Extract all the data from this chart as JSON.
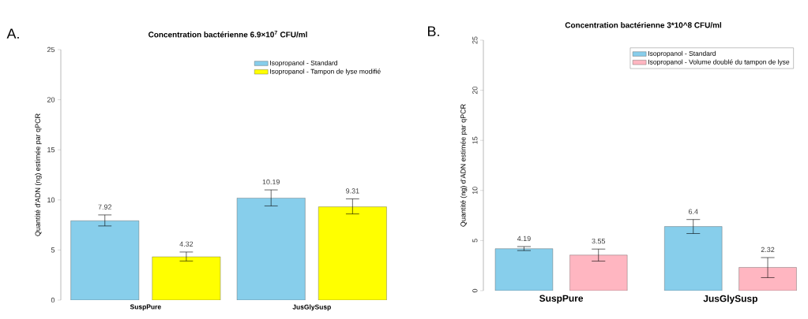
{
  "chart_data": [
    {
      "type": "bar",
      "title": "Concentration bactérienne 6.9×10$^{7}$ CFU/ml",
      "ylabel": "Quantité d'ADN (ng) estimée par qPCR",
      "annotations": [
        "A."
      ],
      "categories": [
        "SuspPure",
        "JusGlySusp"
      ],
      "series": [
        {
          "name": "Isopropanol - Standard",
          "color": "#87ceeb",
          "values": [
            7.92,
            10.19
          ],
          "errors": [
            [
              7.4,
              8.5
            ],
            [
              9.4,
              11.0
            ]
          ]
        },
        {
          "name": "Isopropanol - Tampon de lyse modifié",
          "color": "#ffff00",
          "values": [
            4.32,
            9.31
          ],
          "errors": [
            [
              3.9,
              4.8
            ],
            [
              8.6,
              10.1
            ]
          ]
        }
      ],
      "ylim": [
        0,
        25
      ],
      "yticks": [
        0,
        5,
        10,
        15,
        20,
        25
      ],
      "data_labels": true,
      "legend": "top right"
    },
    {
      "type": "bar",
      "title": "Concentration bactérienne 3*10^8 CFU/ml",
      "ylabel": "Quantité (ng) d'ADN estimée par qPCR",
      "annotations": [
        "B."
      ],
      "categories": [
        "SuspPure",
        "JusGlySusp"
      ],
      "series": [
        {
          "name": "Isopropanol - Standard",
          "color": "#87ceeb",
          "values": [
            4.19,
            6.4
          ],
          "errors": [
            [
              4.0,
              4.4
            ],
            [
              5.7,
              7.1
            ]
          ]
        },
        {
          "name": "Isopropanol - Volume doublé du tampon de lyse",
          "color": "#ffb6c1",
          "values": [
            3.55,
            2.32
          ],
          "errors": [
            [
              2.95,
              4.15
            ],
            [
              1.3,
              3.3
            ]
          ]
        }
      ],
      "ylim": [
        0,
        25
      ],
      "yticks": [
        0,
        5,
        10,
        15,
        20,
        25
      ],
      "data_labels": true,
      "legend": "top right"
    }
  ]
}
